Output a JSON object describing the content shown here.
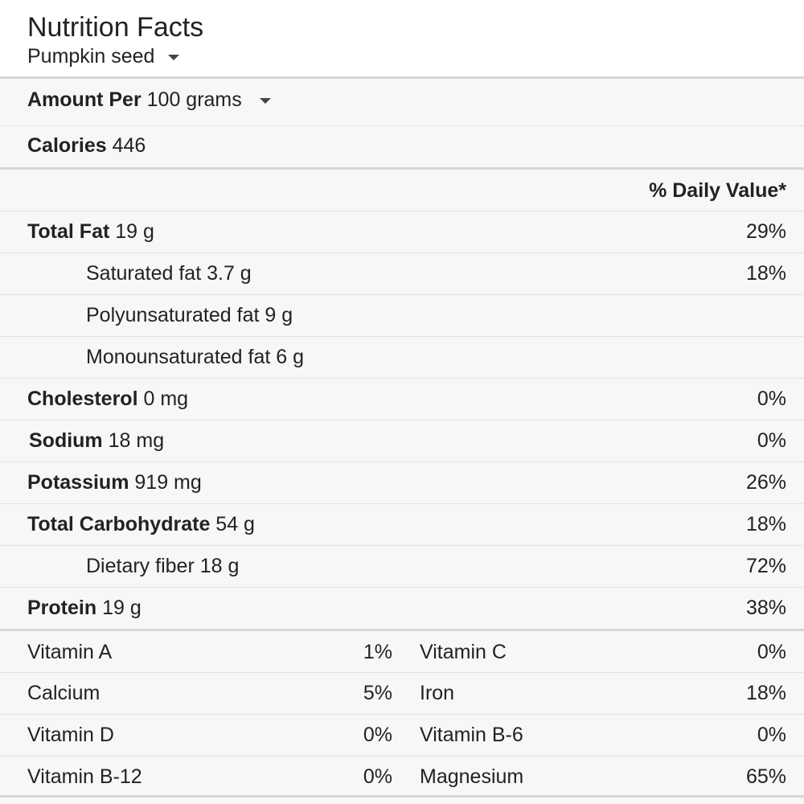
{
  "header": {
    "title": "Nutrition Facts",
    "food": "Pumpkin seed"
  },
  "amount": {
    "label": "Amount Per",
    "value": "100 grams"
  },
  "calories": {
    "label": "Calories",
    "value": "446"
  },
  "daily_value_header": "% Daily Value*",
  "nutrients": [
    {
      "name": "Total Fat",
      "amount": "19 g",
      "dv": "29%"
    },
    {
      "name": "Saturated fat",
      "amount": "3.7 g",
      "dv": "18%"
    },
    {
      "name": "Polyunsaturated fat",
      "amount": "9 g",
      "dv": ""
    },
    {
      "name": "Monounsaturated fat",
      "amount": "6 g",
      "dv": ""
    },
    {
      "name": "Cholesterol",
      "amount": "0 mg",
      "dv": "0%"
    },
    {
      "name": "Sodium",
      "amount": "18 mg",
      "dv": "0%"
    },
    {
      "name": "Potassium",
      "amount": "919 mg",
      "dv": "26%"
    },
    {
      "name": "Total Carbohydrate",
      "amount": "54 g",
      "dv": "18%"
    },
    {
      "name": "Dietary fiber",
      "amount": "18 g",
      "dv": "72%"
    },
    {
      "name": "Protein",
      "amount": "19 g",
      "dv": "38%"
    }
  ],
  "vitamins": [
    {
      "left_name": "Vitamin A",
      "left_value": "1%",
      "right_name": "Vitamin C",
      "right_value": "0%"
    },
    {
      "left_name": "Calcium",
      "left_value": "5%",
      "right_name": "Iron",
      "right_value": "18%"
    },
    {
      "left_name": "Vitamin D",
      "left_value": "0%",
      "right_name": "Vitamin B-6",
      "right_value": "0%"
    },
    {
      "left_name": "Vitamin B-12",
      "left_value": "0%",
      "right_name": "Magnesium",
      "right_value": "65%"
    }
  ]
}
